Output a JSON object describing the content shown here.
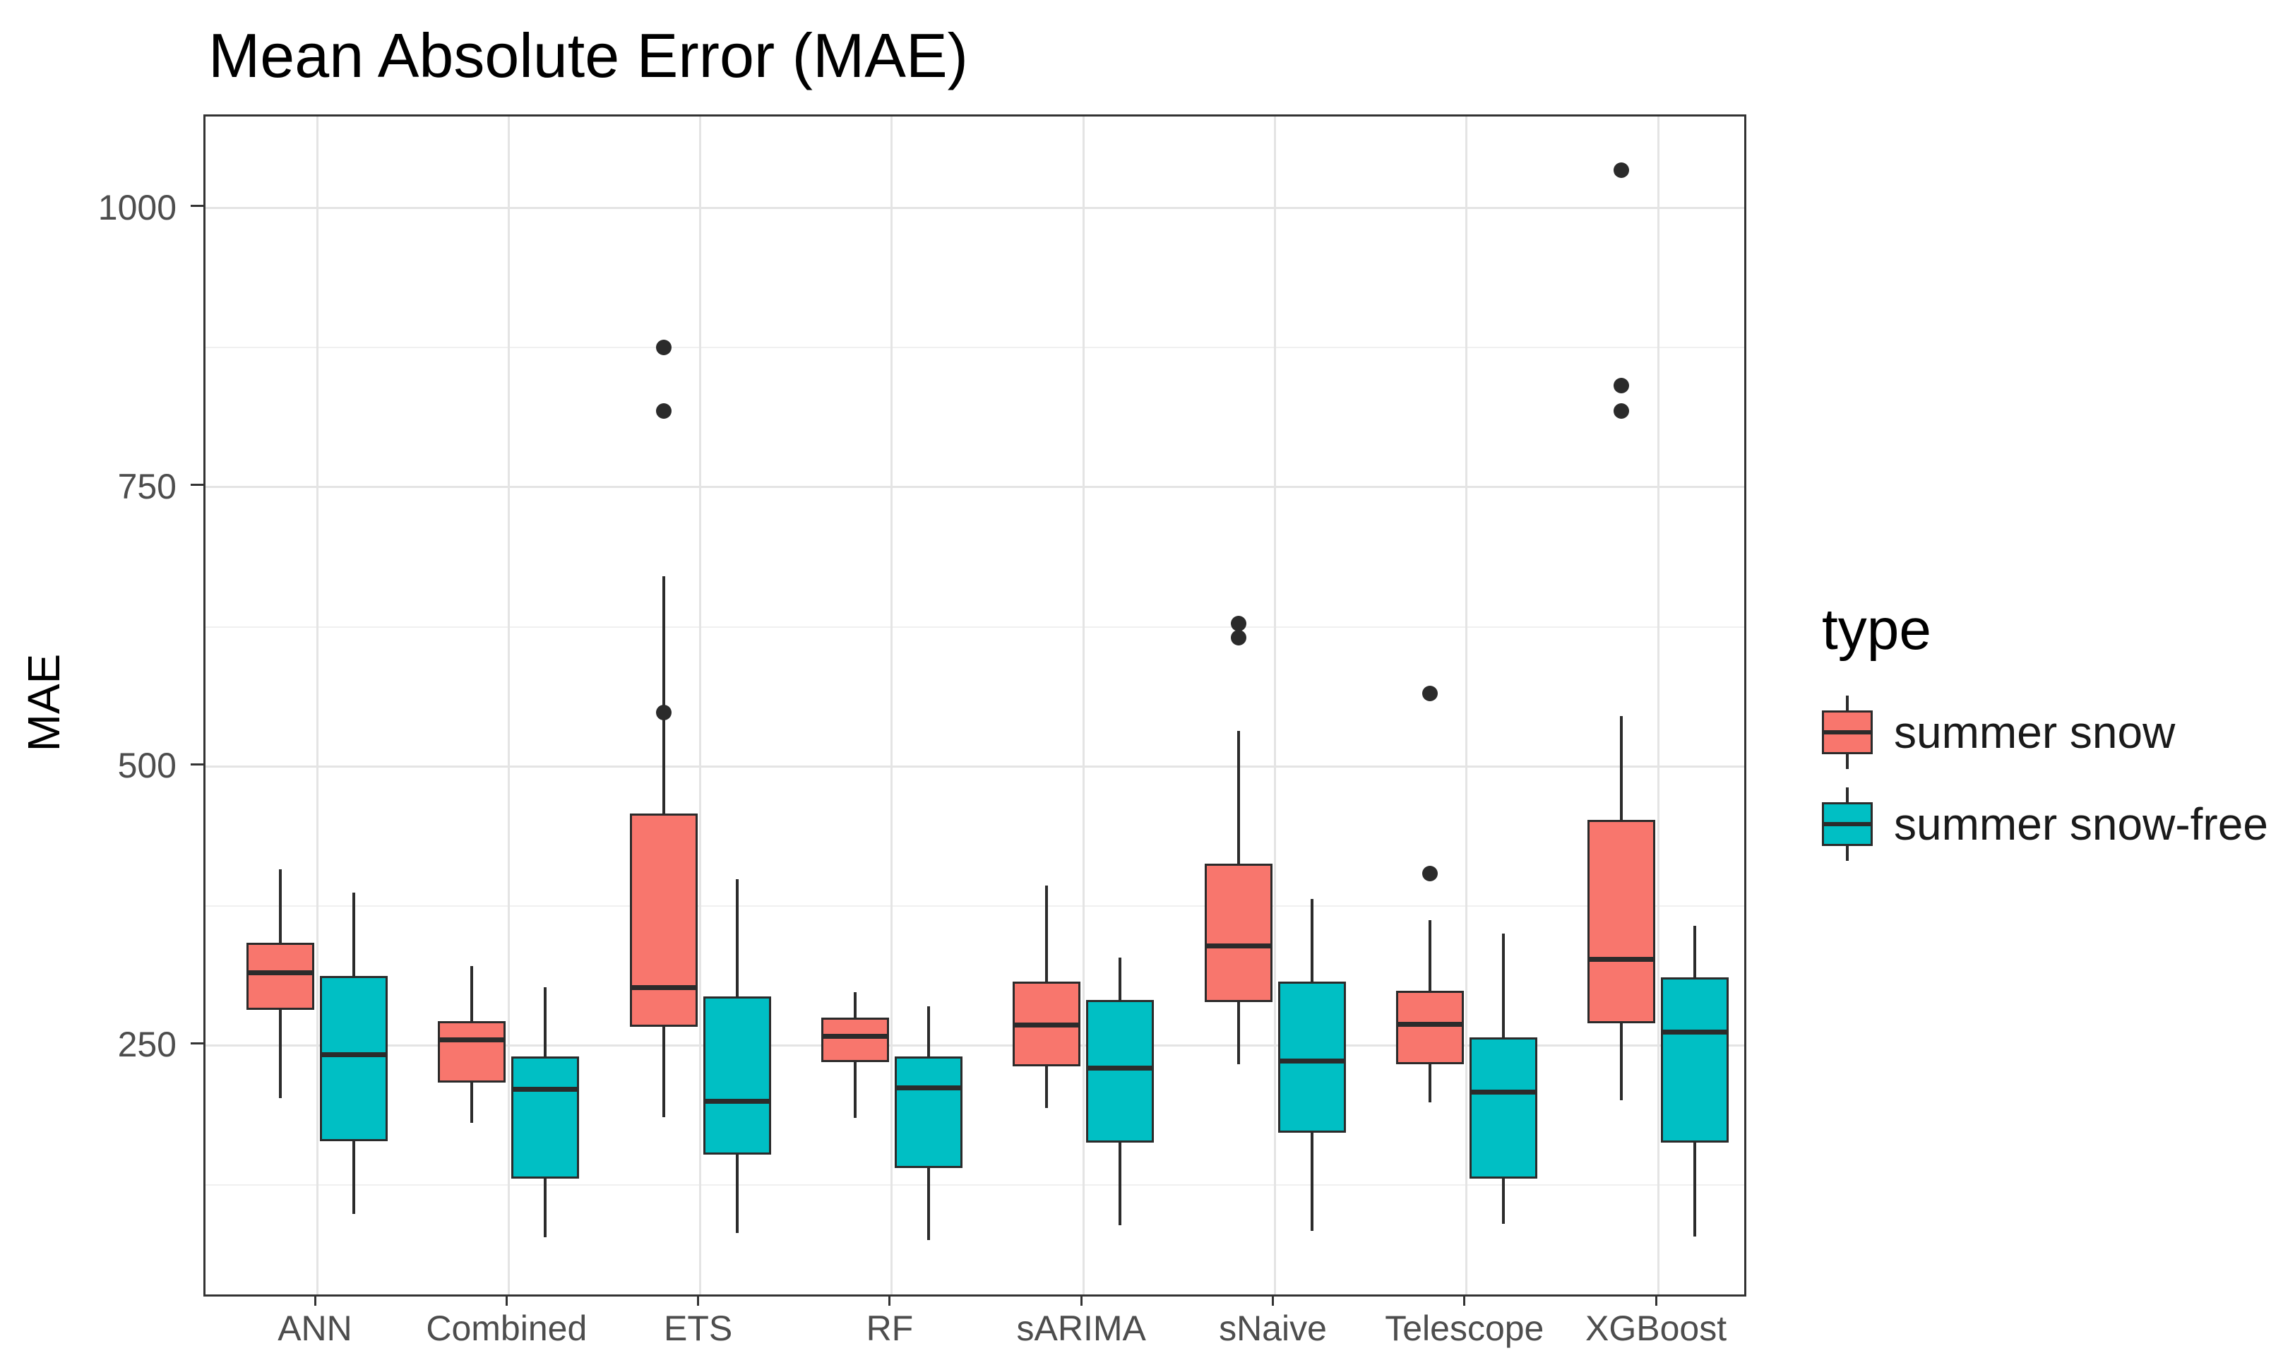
{
  "title": "Mean Absolute Error (MAE)",
  "y_axis": {
    "label": "MAE",
    "ticks": [
      "250",
      "500",
      "750",
      "1000"
    ]
  },
  "legend": {
    "title": "type",
    "items": [
      {
        "label": "summer snow",
        "color": "#F8766D"
      },
      {
        "label": "summer snow-free",
        "color": "#00BFC4"
      }
    ]
  },
  "chart_data": {
    "type": "boxplot",
    "title": "Mean Absolute Error (MAE)",
    "xlabel": "",
    "ylabel": "MAE",
    "ylim": [
      27,
      1082
    ],
    "y_major_gridlines": [
      250,
      500,
      750,
      1000
    ],
    "y_minor_gridlines": [
      125,
      375,
      625,
      875
    ],
    "grid": "on",
    "legend_position": "right",
    "categories": [
      "ANN",
      "Combined",
      "ETS",
      "RF",
      "sARIMA",
      "sNaive",
      "Telescope",
      "XGBoost"
    ],
    "series": [
      {
        "name": "summer snow",
        "color": "#F8766D",
        "boxes": [
          {
            "category": "ANN",
            "min": 203,
            "q1": 282,
            "median": 315,
            "q3": 342,
            "max": 408,
            "outliers": []
          },
          {
            "category": "Combined",
            "min": 181,
            "q1": 217,
            "median": 255,
            "q3": 272,
            "max": 321,
            "outliers": []
          },
          {
            "category": "ETS",
            "min": 186,
            "q1": 267,
            "median": 302,
            "q3": 458,
            "max": 670,
            "outliers": [
              548,
              818,
              875
            ]
          },
          {
            "category": "RF",
            "min": 185,
            "q1": 235,
            "median": 258,
            "q3": 275,
            "max": 298,
            "outliers": []
          },
          {
            "category": "sARIMA",
            "min": 194,
            "q1": 231,
            "median": 268,
            "q3": 307,
            "max": 393,
            "outliers": []
          },
          {
            "category": "sNaive",
            "min": 233,
            "q1": 289,
            "median": 339,
            "q3": 413,
            "max": 532,
            "outliers": [
              615,
              628
            ]
          },
          {
            "category": "Telescope",
            "min": 199,
            "q1": 233,
            "median": 269,
            "q3": 299,
            "max": 362,
            "outliers": [
              404,
              565
            ]
          },
          {
            "category": "XGBoost",
            "min": 201,
            "q1": 270,
            "median": 327,
            "q3": 452,
            "max": 545,
            "outliers": [
              818,
              841,
              1034
            ]
          }
        ]
      },
      {
        "name": "summer snow-free",
        "color": "#00BFC4",
        "boxes": [
          {
            "category": "ANN",
            "min": 99,
            "q1": 164,
            "median": 242,
            "q3": 312,
            "max": 387,
            "outliers": []
          },
          {
            "category": "Combined",
            "min": 78,
            "q1": 131,
            "median": 211,
            "q3": 240,
            "max": 302,
            "outliers": []
          },
          {
            "category": "ETS",
            "min": 82,
            "q1": 152,
            "median": 200,
            "q3": 294,
            "max": 399,
            "outliers": []
          },
          {
            "category": "RF",
            "min": 76,
            "q1": 140,
            "median": 212,
            "q3": 240,
            "max": 285,
            "outliers": []
          },
          {
            "category": "sARIMA",
            "min": 89,
            "q1": 163,
            "median": 230,
            "q3": 291,
            "max": 329,
            "outliers": []
          },
          {
            "category": "sNaive",
            "min": 84,
            "q1": 172,
            "median": 236,
            "q3": 307,
            "max": 381,
            "outliers": []
          },
          {
            "category": "Telescope",
            "min": 90,
            "q1": 131,
            "median": 208,
            "q3": 257,
            "max": 350,
            "outliers": []
          },
          {
            "category": "XGBoost",
            "min": 79,
            "q1": 163,
            "median": 262,
            "q3": 311,
            "max": 357,
            "outliers": []
          }
        ]
      }
    ]
  }
}
